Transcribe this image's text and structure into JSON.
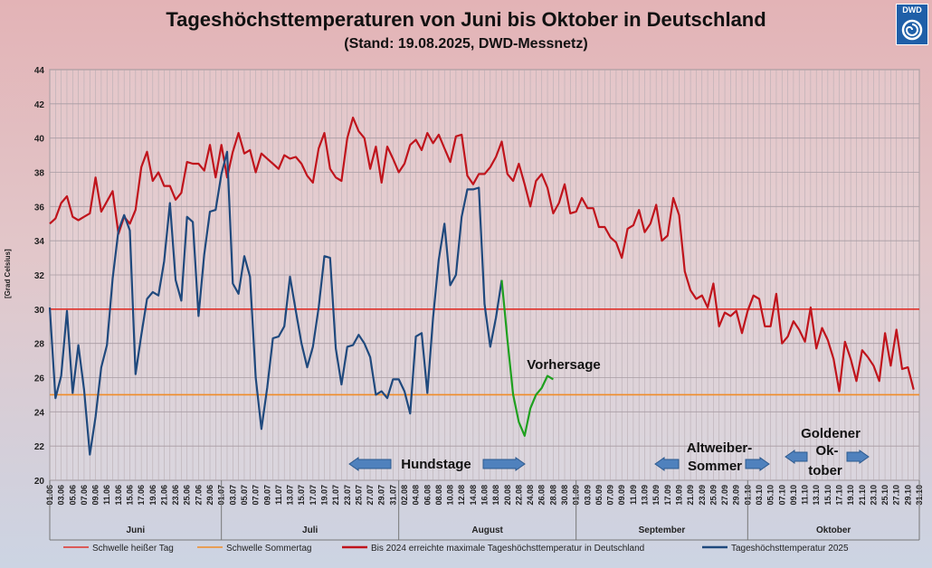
{
  "chart_data": {
    "type": "line",
    "title": "Tageshöchsttemperaturen von Juni bis Oktober in Deutschland",
    "subtitle": "(Stand: 19.08.2025, DWD-Messnetz)",
    "ylabel": "[Grad Celsius]",
    "ylim": [
      20,
      44
    ],
    "yticks": [
      20,
      22,
      24,
      26,
      28,
      30,
      32,
      34,
      36,
      38,
      40,
      42,
      44
    ],
    "months": [
      "Juni",
      "Juli",
      "August",
      "September",
      "Oktober"
    ],
    "x_tick_labels": [
      "01.06",
      "03.06",
      "05.06",
      "07.06",
      "09.06",
      "11.06",
      "13.06",
      "15.06",
      "17.06",
      "19.06",
      "21.06",
      "23.06",
      "25.06",
      "27.06",
      "29.06",
      "01.07",
      "03.07",
      "05.07",
      "07.07",
      "09.07",
      "11.07",
      "13.07",
      "15.07",
      "17.07",
      "19.07",
      "21.07",
      "23.07",
      "25.07",
      "27.07",
      "29.07",
      "31.07",
      "02.08",
      "04.08",
      "06.08",
      "08.08",
      "10.08",
      "12.08",
      "14.08",
      "16.08",
      "18.08",
      "20.08",
      "22.08",
      "24.08",
      "26.08",
      "28.08",
      "30.08",
      "01.09",
      "03.09",
      "05.09",
      "07.09",
      "09.09",
      "11.09",
      "13.09",
      "15.09",
      "17.09",
      "19.09",
      "21.09",
      "23.09",
      "25.09",
      "27.09",
      "29.09",
      "01.10",
      "03.10",
      "05.10",
      "07.10",
      "09.10",
      "11.10",
      "13.10",
      "15.10",
      "17.10",
      "19.10",
      "21.10",
      "23.10",
      "25.10",
      "27.10",
      "29.10",
      "31.10"
    ],
    "thresholds": [
      {
        "name": "Schwelle heißer Tag",
        "value": 30,
        "color": "#e0322b"
      },
      {
        "name": "Schwelle Sommertag",
        "value": 25,
        "color": "#f08c28"
      }
    ],
    "series": [
      {
        "name": "Bis 2024 erreichte maximale Tageshöchsttemperatur in Deutschland",
        "color": "#c0141c",
        "values": [
          35,
          35.3,
          36.2,
          36.6,
          35.4,
          35.2,
          35.4,
          35.6,
          37.7,
          35.7,
          36.3,
          36.9,
          34.4,
          35.4,
          35,
          35.8,
          38.3,
          39.2,
          37.5,
          38,
          37.2,
          37.2,
          36.4,
          36.8,
          38.6,
          38.5,
          38.5,
          38.1,
          39.6,
          37.7,
          39.6,
          37.7,
          39.2,
          40.3,
          39.1,
          39.3,
          38,
          39.1,
          38.8,
          38.5,
          38.2,
          39,
          38.8,
          38.9,
          38.5,
          37.8,
          37.4,
          39.4,
          40.3,
          38.2,
          37.7,
          37.5,
          40,
          41.2,
          40.4,
          40,
          38.2,
          39.5,
          37.4,
          39.5,
          38.8,
          38,
          38.5,
          39.6,
          39.9,
          39.3,
          40.3,
          39.7,
          40.2,
          39.4,
          38.6,
          40.1,
          40.2,
          37.8,
          37.3,
          37.9,
          37.9,
          38.3,
          38.9,
          39.8,
          37.9,
          37.5,
          38.5,
          37.3,
          36,
          37.5,
          37.9,
          37.1,
          35.6,
          36.2,
          37.3,
          35.6,
          35.7,
          36.5,
          35.9,
          35.9,
          34.8,
          34.8,
          34.2,
          33.9,
          33,
          34.7,
          34.9,
          35.8,
          34.5,
          35,
          36.1,
          34,
          34.3,
          36.5,
          35.5,
          32.2,
          31.1,
          30.6,
          30.8,
          30.1,
          31.5,
          29,
          29.8,
          29.6,
          29.9,
          28.6,
          29.9,
          30.8,
          30.6,
          29,
          29,
          30.9,
          28,
          28.4,
          29.3,
          28.8,
          28.1,
          30.1,
          27.7,
          28.9,
          28.2,
          27.1,
          25.2,
          28.1,
          27.1,
          25.8,
          27.6,
          27.2,
          26.7,
          25.8,
          28.6,
          26.7,
          28.8,
          26.5,
          26.6,
          25.3
        ]
      },
      {
        "name": "Tageshöchsttemperatur 2025",
        "color": "#1f497d",
        "values": [
          30.1,
          24.8,
          26.1,
          29.9,
          25.1,
          27.9,
          25.3,
          21.5,
          23.7,
          26.6,
          27.9,
          31.8,
          34.6,
          35.5,
          34.6,
          26.2,
          28.5,
          30.6,
          31,
          30.8,
          32.8,
          36.2,
          31.7,
          30.5,
          35.4,
          35.1,
          29.6,
          33.2,
          35.7,
          35.8,
          37.9,
          39.2,
          31.5,
          30.9,
          33.1,
          31.9,
          26,
          23,
          25.4,
          28.3,
          28.4,
          29,
          31.9,
          29.9,
          28,
          26.6,
          27.8,
          30.1,
          33.1,
          33,
          27.7,
          25.6,
          27.8,
          27.9,
          28.5,
          28,
          27.2,
          25,
          25.2,
          24.8,
          25.9,
          25.9,
          25.2,
          23.9,
          28.4,
          28.6,
          25.1,
          29.5,
          32.9,
          35,
          31.4,
          32,
          35.4,
          37,
          37,
          37.1,
          30.3,
          27.8,
          29.5,
          31.7
        ]
      },
      {
        "name": "Vorhersage",
        "color": "#1fa01f",
        "values": [
          {
            "x": 79,
            "y": 31.7
          },
          {
            "x": 80,
            "y": 28.2
          },
          {
            "x": 81,
            "y": 25
          },
          {
            "x": 82,
            "y": 23.4
          },
          {
            "x": 83,
            "y": 22.6
          },
          {
            "x": 84,
            "y": 24.2
          },
          {
            "x": 85,
            "y": 25
          },
          {
            "x": 86,
            "y": 25.4
          },
          {
            "x": 87,
            "y": 26.1
          },
          {
            "x": 88,
            "y": 25.9
          }
        ]
      }
    ],
    "annotations": {
      "forecast": "Vorhersage",
      "hundstage": "Hundstage",
      "altweiber_1": "Altweiber-",
      "altweiber_2": "Sommer",
      "oktober_1": "Goldener",
      "oktober_2": "Ok-",
      "oktober_3": "tober"
    },
    "legend": [
      "Schwelle heißer Tag",
      "Schwelle Sommertag",
      "Bis 2024 erreichte maximale Tageshöchsttemperatur in Deutschland",
      "Tageshöchsttemperatur 2025"
    ]
  },
  "logo": {
    "text": "DWD"
  }
}
